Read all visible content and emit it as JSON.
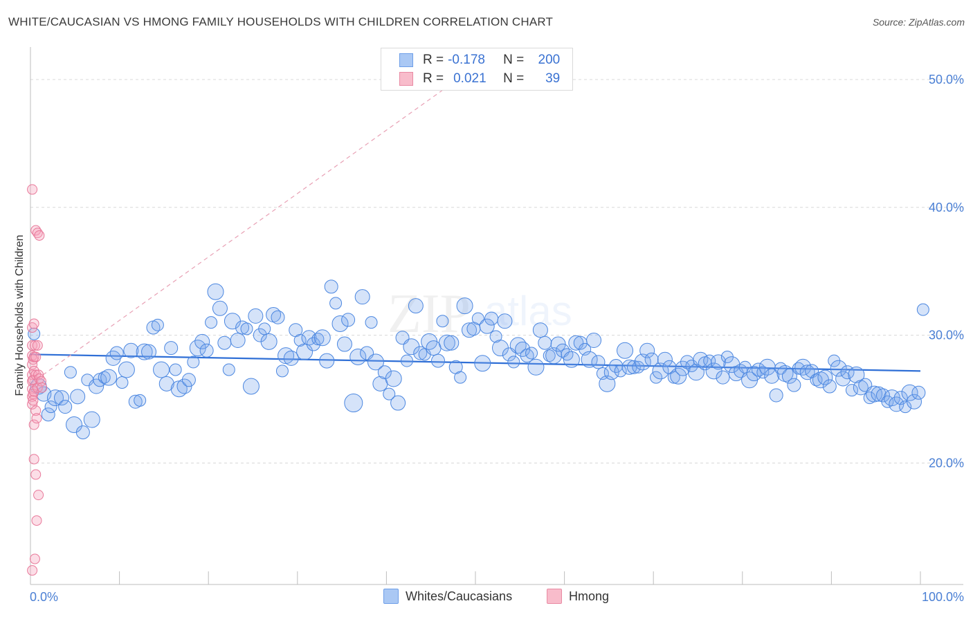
{
  "header": {
    "title": "WHITE/CAUCASIAN VS HMONG FAMILY HOUSEHOLDS WITH CHILDREN CORRELATION CHART",
    "source": "Source: ZipAtlas.com"
  },
  "stats_legend": {
    "rows": [
      {
        "r_label": "R =",
        "r_value": "-0.178",
        "n_label": "N =",
        "n_value": "200",
        "color": "#aac8f4",
        "border": "#6d9ee8"
      },
      {
        "r_label": "R =",
        "r_value": "0.021",
        "n_label": "N =",
        "n_value": "39",
        "color": "#f8bccb",
        "border": "#e98aa3"
      }
    ]
  },
  "bottom_legend": [
    {
      "label": "Whites/Caucasians",
      "color": "#aac8f4",
      "border": "#6d9ee8"
    },
    {
      "label": "Hmong",
      "color": "#f8bccb",
      "border": "#e98aa3"
    }
  ],
  "chart_data": {
    "type": "scatter",
    "ylabel": "Family Households with Children",
    "xlim": [
      0,
      100
    ],
    "ylim": [
      10.5,
      52
    ],
    "x_tick_labels": [
      "0.0%",
      "100.0%"
    ],
    "y_ticks": [
      20,
      30,
      40,
      50
    ],
    "y_tick_labels": [
      "20.0%",
      "30.0%",
      "40.0%",
      "50.0%"
    ],
    "grid": true,
    "legend_position": "top-center",
    "colors": {
      "white": "#4a86e0",
      "hmong": "#e8799a",
      "white_fill": "rgba(120,165,235,0.35)",
      "hmong_fill": "rgba(245,160,185,0.35)"
    },
    "series": [
      {
        "name": "Whites/Caucasians",
        "trend": {
          "x": [
            0,
            100
          ],
          "y": [
            28.5,
            27.2
          ]
        },
        "points": [
          [
            0.4,
            30.1
          ],
          [
            0.9,
            26
          ],
          [
            1.5,
            25.4
          ],
          [
            2,
            23.8
          ],
          [
            2.3,
            24.4
          ],
          [
            2.8,
            25.1
          ],
          [
            3.5,
            25.1
          ],
          [
            3.9,
            24.4
          ],
          [
            4.5,
            27.1
          ],
          [
            4.9,
            23
          ],
          [
            5.3,
            25.2
          ],
          [
            5.9,
            22.4
          ],
          [
            6.4,
            26.5
          ],
          [
            6.9,
            23.4
          ],
          [
            7.4,
            26
          ],
          [
            7.8,
            26.5
          ],
          [
            8.3,
            26.7
          ],
          [
            8.8,
            26.7
          ],
          [
            9.3,
            28.2
          ],
          [
            9.7,
            28.6
          ],
          [
            10.3,
            26.3
          ],
          [
            10.8,
            27.3
          ],
          [
            11.3,
            28.8
          ],
          [
            11.8,
            24.8
          ],
          [
            12.3,
            24.9
          ],
          [
            12.8,
            28.7
          ],
          [
            13.3,
            28.7
          ],
          [
            13.8,
            30.6
          ],
          [
            14.3,
            30.8
          ],
          [
            14.7,
            27.3
          ],
          [
            15.3,
            26.2
          ],
          [
            15.8,
            29
          ],
          [
            16.3,
            27.3
          ],
          [
            16.7,
            25.8
          ],
          [
            17.3,
            26
          ],
          [
            17.8,
            26.5
          ],
          [
            18.3,
            27.9
          ],
          [
            18.8,
            29
          ],
          [
            19.3,
            29.5
          ],
          [
            19.8,
            28.8
          ],
          [
            20.3,
            31
          ],
          [
            20.8,
            33.4
          ],
          [
            21.3,
            32.1
          ],
          [
            21.8,
            29.4
          ],
          [
            22.3,
            27.3
          ],
          [
            22.7,
            31.1
          ],
          [
            23.3,
            29.6
          ],
          [
            23.8,
            30.6
          ],
          [
            24.3,
            30.5
          ],
          [
            24.8,
            26
          ],
          [
            25.3,
            31.5
          ],
          [
            25.8,
            30
          ],
          [
            26.3,
            30.5
          ],
          [
            26.8,
            29.5
          ],
          [
            27.3,
            31.6
          ],
          [
            27.8,
            31.4
          ],
          [
            28.3,
            27.2
          ],
          [
            28.7,
            28.4
          ],
          [
            29.3,
            28.2
          ],
          [
            29.8,
            30.4
          ],
          [
            30.3,
            29.6
          ],
          [
            30.8,
            28.7
          ],
          [
            31.3,
            29.8
          ],
          [
            31.8,
            29.3
          ],
          [
            32.3,
            29.7
          ],
          [
            32.8,
            29.8
          ],
          [
            33.3,
            28
          ],
          [
            33.8,
            33.8
          ],
          [
            34.3,
            32.5
          ],
          [
            34.8,
            30.9
          ],
          [
            35.3,
            29.3
          ],
          [
            35.7,
            31.2
          ],
          [
            36.3,
            24.7
          ],
          [
            36.8,
            28.3
          ],
          [
            37.3,
            33
          ],
          [
            37.8,
            28.6
          ],
          [
            38.3,
            31
          ],
          [
            38.8,
            27.9
          ],
          [
            39.3,
            26.2
          ],
          [
            39.8,
            27.1
          ],
          [
            40.3,
            25.4
          ],
          [
            40.8,
            26.6
          ],
          [
            41.3,
            24.7
          ],
          [
            41.8,
            29.8
          ],
          [
            42.3,
            28
          ],
          [
            42.8,
            29.1
          ],
          [
            43.3,
            32.3
          ],
          [
            43.8,
            28.6
          ],
          [
            44.3,
            28.5
          ],
          [
            44.8,
            29.5
          ],
          [
            45.3,
            29
          ],
          [
            45.8,
            28
          ],
          [
            46.3,
            31.1
          ],
          [
            46.8,
            29.4
          ],
          [
            47.3,
            29.4
          ],
          [
            47.8,
            27.5
          ],
          [
            48.3,
            26.7
          ],
          [
            48.8,
            32.3
          ],
          [
            49.3,
            30.4
          ],
          [
            49.8,
            30.5
          ],
          [
            50.3,
            31.3
          ],
          [
            50.8,
            27.8
          ],
          [
            51.3,
            30.7
          ],
          [
            51.8,
            31.3
          ],
          [
            52.3,
            29.9
          ],
          [
            52.8,
            29
          ],
          [
            53.3,
            31.1
          ],
          [
            53.8,
            28.5
          ],
          [
            54.3,
            27.9
          ],
          [
            54.8,
            29.2
          ],
          [
            55.3,
            28.9
          ],
          [
            55.8,
            28.4
          ],
          [
            56.3,
            28.6
          ],
          [
            56.8,
            27.5
          ],
          [
            57.3,
            30.4
          ],
          [
            57.8,
            29.4
          ],
          [
            58.3,
            28.4
          ],
          [
            58.8,
            28.4
          ],
          [
            59.3,
            29.3
          ],
          [
            59.8,
            28.8
          ],
          [
            60.3,
            28.5
          ],
          [
            60.8,
            28.1
          ],
          [
            61.3,
            29.4
          ],
          [
            61.8,
            29.4
          ],
          [
            62.3,
            28.9
          ],
          [
            62.8,
            28.1
          ],
          [
            63.3,
            29.6
          ],
          [
            63.8,
            27.9
          ],
          [
            64.3,
            27
          ],
          [
            64.8,
            26.2
          ],
          [
            65.3,
            27.1
          ],
          [
            65.8,
            27.6
          ],
          [
            66.3,
            27.2
          ],
          [
            66.8,
            28.8
          ],
          [
            67.3,
            27.5
          ],
          [
            67.8,
            27.5
          ],
          [
            68.3,
            27.5
          ],
          [
            68.8,
            27.9
          ],
          [
            69.3,
            28.8
          ],
          [
            69.8,
            28.1
          ],
          [
            70.3,
            26.7
          ],
          [
            70.8,
            27.2
          ],
          [
            71.3,
            28.1
          ],
          [
            71.8,
            27.5
          ],
          [
            72.3,
            26.7
          ],
          [
            72.8,
            26.8
          ],
          [
            73.3,
            27.4
          ],
          [
            73.8,
            27.9
          ],
          [
            74.3,
            27.6
          ],
          [
            74.8,
            27.1
          ],
          [
            75.3,
            28.1
          ],
          [
            75.8,
            27.8
          ],
          [
            76.3,
            28
          ],
          [
            76.8,
            27.2
          ],
          [
            77.3,
            27.9
          ],
          [
            77.8,
            26.7
          ],
          [
            78.3,
            28.3
          ],
          [
            78.8,
            27.7
          ],
          [
            79.3,
            27
          ],
          [
            79.8,
            27.2
          ],
          [
            80.3,
            27.5
          ],
          [
            80.8,
            26.5
          ],
          [
            81.3,
            27
          ],
          [
            81.8,
            27.3
          ],
          [
            82.3,
            27.1
          ],
          [
            82.8,
            27.5
          ],
          [
            83.3,
            26.8
          ],
          [
            83.8,
            25.3
          ],
          [
            84.3,
            27.4
          ],
          [
            84.8,
            27
          ],
          [
            85.3,
            26.8
          ],
          [
            85.8,
            26.1
          ],
          [
            86.3,
            27.4
          ],
          [
            86.8,
            27.5
          ],
          [
            87.3,
            27.1
          ],
          [
            87.8,
            27.2
          ],
          [
            88.3,
            26.5
          ],
          [
            88.8,
            26.5
          ],
          [
            89.3,
            26.7
          ],
          [
            89.8,
            26
          ],
          [
            90.3,
            28
          ],
          [
            90.8,
            27.4
          ],
          [
            91.3,
            26.6
          ],
          [
            91.8,
            27.1
          ],
          [
            92.3,
            25.7
          ],
          [
            92.8,
            26.9
          ],
          [
            93.3,
            25.9
          ],
          [
            93.8,
            26.1
          ],
          [
            94.3,
            25.1
          ],
          [
            94.8,
            25.4
          ],
          [
            95.3,
            25.4
          ],
          [
            95.8,
            25.3
          ],
          [
            96.3,
            24.8
          ],
          [
            96.8,
            25.1
          ],
          [
            97.3,
            24.6
          ],
          [
            97.8,
            25.1
          ],
          [
            98.3,
            24.4
          ],
          [
            98.8,
            25.5
          ],
          [
            99.3,
            24.8
          ],
          [
            99.8,
            25.5
          ],
          [
            100.3,
            32
          ]
        ]
      },
      {
        "name": "Hmong",
        "trend": {
          "x": [
            0,
            50
          ],
          "y": [
            26.2,
            51
          ]
        },
        "points": [
          [
            0.2,
            41.4
          ],
          [
            0.2,
            30.6
          ],
          [
            0.2,
            29.2
          ],
          [
            0.2,
            28.4
          ],
          [
            0.2,
            27.7
          ],
          [
            0.2,
            26.9
          ],
          [
            0.2,
            26.4
          ],
          [
            0.2,
            25.8
          ],
          [
            0.2,
            25.2
          ],
          [
            0.2,
            24.6
          ],
          [
            0.2,
            11.6
          ],
          [
            0.3,
            28.1
          ],
          [
            0.3,
            26.5
          ],
          [
            0.3,
            25.4
          ],
          [
            0.3,
            24.9
          ],
          [
            0.4,
            30.9
          ],
          [
            0.4,
            28.3
          ],
          [
            0.4,
            27.2
          ],
          [
            0.4,
            25.6
          ],
          [
            0.4,
            23
          ],
          [
            0.4,
            20.3
          ],
          [
            0.5,
            29.2
          ],
          [
            0.5,
            12.5
          ],
          [
            0.6,
            38.2
          ],
          [
            0.6,
            28.3
          ],
          [
            0.6,
            26.9
          ],
          [
            0.6,
            24.1
          ],
          [
            0.6,
            19.1
          ],
          [
            0.7,
            23.5
          ],
          [
            0.7,
            15.5
          ],
          [
            0.8,
            38
          ],
          [
            0.8,
            29.2
          ],
          [
            0.8,
            25.9
          ],
          [
            0.9,
            26.9
          ],
          [
            0.9,
            17.5
          ],
          [
            1,
            37.8
          ],
          [
            1,
            26.6
          ],
          [
            1.2,
            26.4
          ],
          [
            1.3,
            25.9
          ]
        ]
      }
    ]
  }
}
